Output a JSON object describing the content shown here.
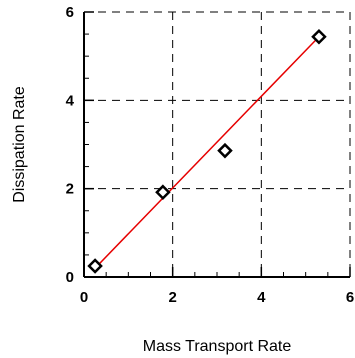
{
  "chart_data": {
    "type": "scatter",
    "title": "",
    "xlabel": "Mass Transport Rate",
    "ylabel": "Dissipation Rate",
    "xlim": [
      0,
      6
    ],
    "ylim": [
      0,
      6
    ],
    "xticks": [
      0,
      2,
      4,
      6
    ],
    "yticks": [
      0,
      2,
      4,
      6
    ],
    "xtick_labels": [
      "0",
      "2",
      "4",
      "6"
    ],
    "ytick_labels": [
      "0",
      "2",
      "4",
      "6"
    ],
    "grid": true,
    "grid_style": "dashed",
    "series": [
      {
        "type": "scatter",
        "marker": "diamond",
        "color": "#000000",
        "points": [
          {
            "x": 0.25,
            "y": 0.25
          },
          {
            "x": 1.78,
            "y": 1.92
          },
          {
            "x": 3.18,
            "y": 2.86
          },
          {
            "x": 5.3,
            "y": 5.44
          }
        ]
      },
      {
        "type": "line",
        "color": "#e60000",
        "points": [
          {
            "x": 0.25,
            "y": 0.2
          },
          {
            "x": 5.3,
            "y": 5.44
          }
        ]
      }
    ]
  }
}
